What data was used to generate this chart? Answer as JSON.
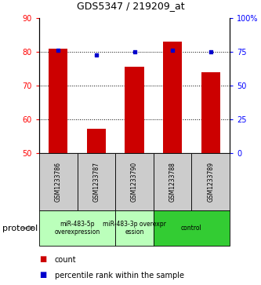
{
  "title": "GDS5347 / 219209_at",
  "samples": [
    "GSM1233786",
    "GSM1233787",
    "GSM1233790",
    "GSM1233788",
    "GSM1233789"
  ],
  "bar_values": [
    81.0,
    57.2,
    75.5,
    83.0,
    74.0
  ],
  "percentile_values": [
    76.0,
    72.5,
    75.0,
    76.0,
    75.0
  ],
  "ylim": [
    50,
    90
  ],
  "yticks_left": [
    50,
    60,
    70,
    80,
    90
  ],
  "right_ticks": [
    0,
    25,
    50,
    75,
    100
  ],
  "right_tick_labels": [
    "0",
    "25",
    "50",
    "75",
    "100%"
  ],
  "bar_color": "#cc0000",
  "percentile_color": "#0000cc",
  "bar_bottom": 50,
  "groups": [
    {
      "label": "miR-483-5p\noverexpression",
      "samples": [
        0,
        1
      ],
      "color": "#bbffbb"
    },
    {
      "label": "miR-483-3p overexpr\nession",
      "samples": [
        2
      ],
      "color": "#bbffbb"
    },
    {
      "label": "control",
      "samples": [
        3,
        4
      ],
      "color": "#33cc33"
    }
  ],
  "protocol_label": "protocol",
  "legend_count_label": "count",
  "legend_percentile_label": "percentile rank within the sample",
  "sample_box_color": "#cccccc"
}
